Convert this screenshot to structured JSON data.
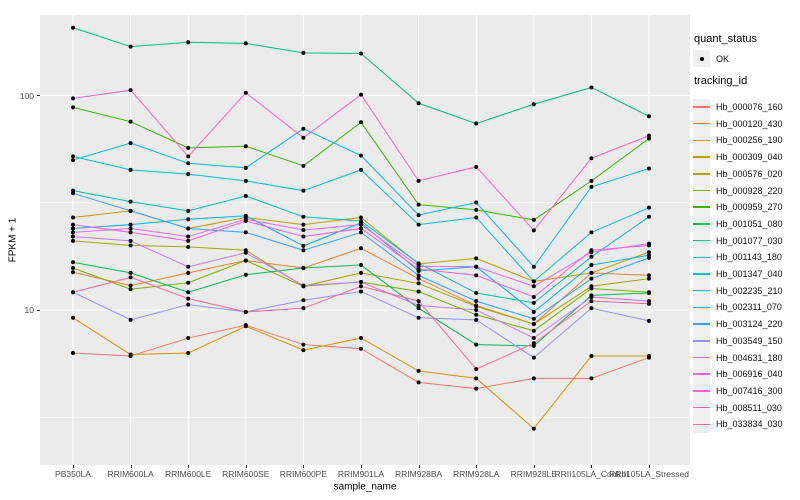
{
  "figure": {
    "x_axis_title": "sample_name",
    "y_axis_title": "FPKM + 1",
    "y_ticks": [
      {
        "label": "100",
        "value": 100
      },
      {
        "label": "10",
        "value": 10
      }
    ]
  },
  "legend": {
    "quant_status_title": "quant_status",
    "quant_status_items": [
      {
        "label": "OK",
        "symbol": "black-point"
      }
    ],
    "tracking_id_title": "tracking_id"
  },
  "colors": {
    "panel_background": "#EBEBEB",
    "gridline": "#FFFFFF",
    "point": "#000000",
    "tick_text": "#4D4D4D"
  },
  "chart_data": {
    "type": "line",
    "title": "",
    "xlabel": "sample_name",
    "ylabel": "FPKM + 1",
    "y_scale": "log10",
    "ylim": [
      1.9,
      237
    ],
    "grid": true,
    "legend_position": "right",
    "minor_gridline_values": [
      3.162,
      31.62
    ],
    "major_gridline_values": [
      10,
      100
    ],
    "point_marker": "black-circle",
    "categories": [
      "PB350LA",
      "RRIM600LA",
      "RRIM600LE",
      "RRIM600SE",
      "RRIM600PE",
      "RRIM901LA",
      "RRIM928BA",
      "RRIM928LA",
      "RRIM928LE",
      "RRII105LA_Control",
      "RRII105LA_Stressed"
    ],
    "series": [
      {
        "name": "Hb_000076_160",
        "color": "#F8766D",
        "values": [
          6.3,
          6.1,
          7.4,
          8.5,
          6.9,
          6.6,
          4.6,
          4.3,
          4.8,
          4.8,
          6.0
        ]
      },
      {
        "name": "Hb_000120_430",
        "color": "#EA8331",
        "values": [
          15.0,
          13.0,
          14.9,
          17.0,
          15.7,
          19.4,
          14.0,
          10.5,
          8.6,
          14.9,
          14.5
        ]
      },
      {
        "name": "Hb_000256_190",
        "color": "#D89000",
        "values": [
          9.2,
          6.2,
          6.3,
          8.4,
          6.5,
          7.4,
          5.2,
          4.8,
          2.8,
          6.1,
          6.1
        ]
      },
      {
        "name": "Hb_000309_040",
        "color": "#C09B00",
        "values": [
          27.0,
          29.0,
          24.0,
          27.0,
          25.0,
          27.0,
          16.4,
          17.4,
          13.6,
          14.9,
          18.6
        ]
      },
      {
        "name": "Hb_000576_020",
        "color": "#A3A500",
        "values": [
          21.0,
          20.0,
          19.7,
          19.0,
          12.9,
          14.9,
          13.3,
          10.4,
          8.6,
          12.9,
          14.0
        ]
      },
      {
        "name": "Hb_000928_220",
        "color": "#7CAE00",
        "values": [
          15.7,
          12.5,
          13.4,
          17.0,
          12.9,
          13.5,
          12.2,
          9.5,
          8.0,
          12.6,
          12.1
        ]
      },
      {
        "name": "Hb_000959_270",
        "color": "#39B600",
        "values": [
          88,
          75.5,
          57,
          58,
          47,
          75,
          31,
          29.3,
          26.3,
          40,
          63
        ]
      },
      {
        "name": "Hb_001051_080",
        "color": "#00BB4E",
        "values": [
          16.7,
          14.9,
          12.1,
          14.6,
          15.7,
          16.2,
          10.2,
          6.9,
          6.8,
          11.7,
          12.0
        ]
      },
      {
        "name": "Hb_001077_030",
        "color": "#00BF7D",
        "values": [
          207,
          169,
          177,
          175,
          158,
          157,
          92,
          74,
          91,
          109,
          80
        ]
      },
      {
        "name": "Hb_001143_180",
        "color": "#00C1A3",
        "values": [
          36,
          32,
          29,
          34,
          27.2,
          26,
          16.5,
          12,
          10.8,
          17.7,
          27.2
        ]
      },
      {
        "name": "Hb_001347_040",
        "color": "#00BFC4",
        "values": [
          52,
          45,
          43,
          40,
          36,
          45,
          25,
          27,
          13.6,
          23,
          30
        ]
      },
      {
        "name": "Hb_002235_210",
        "color": "#00BAE0",
        "values": [
          50,
          60,
          48.3,
          46,
          70,
          52.5,
          27.7,
          31.7,
          15.9,
          37.5,
          45.7
        ]
      },
      {
        "name": "Hb_002311_070",
        "color": "#00B0F6",
        "values": [
          24,
          25,
          26.5,
          27.5,
          19.9,
          25.5,
          15.2,
          15.9,
          9.8,
          16.2,
          18.0
        ]
      },
      {
        "name": "Hb_003124_220",
        "color": "#35A2FF",
        "values": [
          35,
          29,
          24,
          23,
          19,
          23,
          14.5,
          11,
          9.1,
          14,
          17.5
        ]
      },
      {
        "name": "Hb_003549_150",
        "color": "#9590FF",
        "values": [
          12.1,
          9.0,
          10.6,
          9.8,
          11.1,
          12.2,
          9.2,
          9.0,
          6.0,
          10.2,
          8.9
        ]
      },
      {
        "name": "Hb_004631_180",
        "color": "#C77CFF",
        "values": [
          22,
          21,
          15.9,
          18.5,
          13,
          13.5,
          10.5,
          10.0,
          7.4,
          11.5,
          11.0
        ]
      },
      {
        "name": "Hb_006916_040",
        "color": "#E76BF3",
        "values": [
          23,
          24,
          22,
          26.5,
          23.6,
          25,
          16,
          15.9,
          12.9,
          18.6,
          20.4
        ]
      },
      {
        "name": "Hb_007416_300",
        "color": "#FA62DB",
        "values": [
          25,
          23,
          21,
          26,
          22,
          24,
          15.5,
          14.5,
          11.5,
          19,
          20
        ]
      },
      {
        "name": "Hb_008511_030",
        "color": "#FF62BC",
        "values": [
          97,
          106,
          52,
          103,
          63.5,
          101,
          40,
          46.5,
          23.5,
          51,
          65
        ]
      },
      {
        "name": "Hb_033834_030",
        "color": "#FF6A98",
        "values": [
          12.1,
          14.2,
          11.3,
          9.8,
          10.2,
          12.9,
          11.0,
          5.3,
          7.0,
          11.0,
          10.7
        ]
      }
    ]
  }
}
